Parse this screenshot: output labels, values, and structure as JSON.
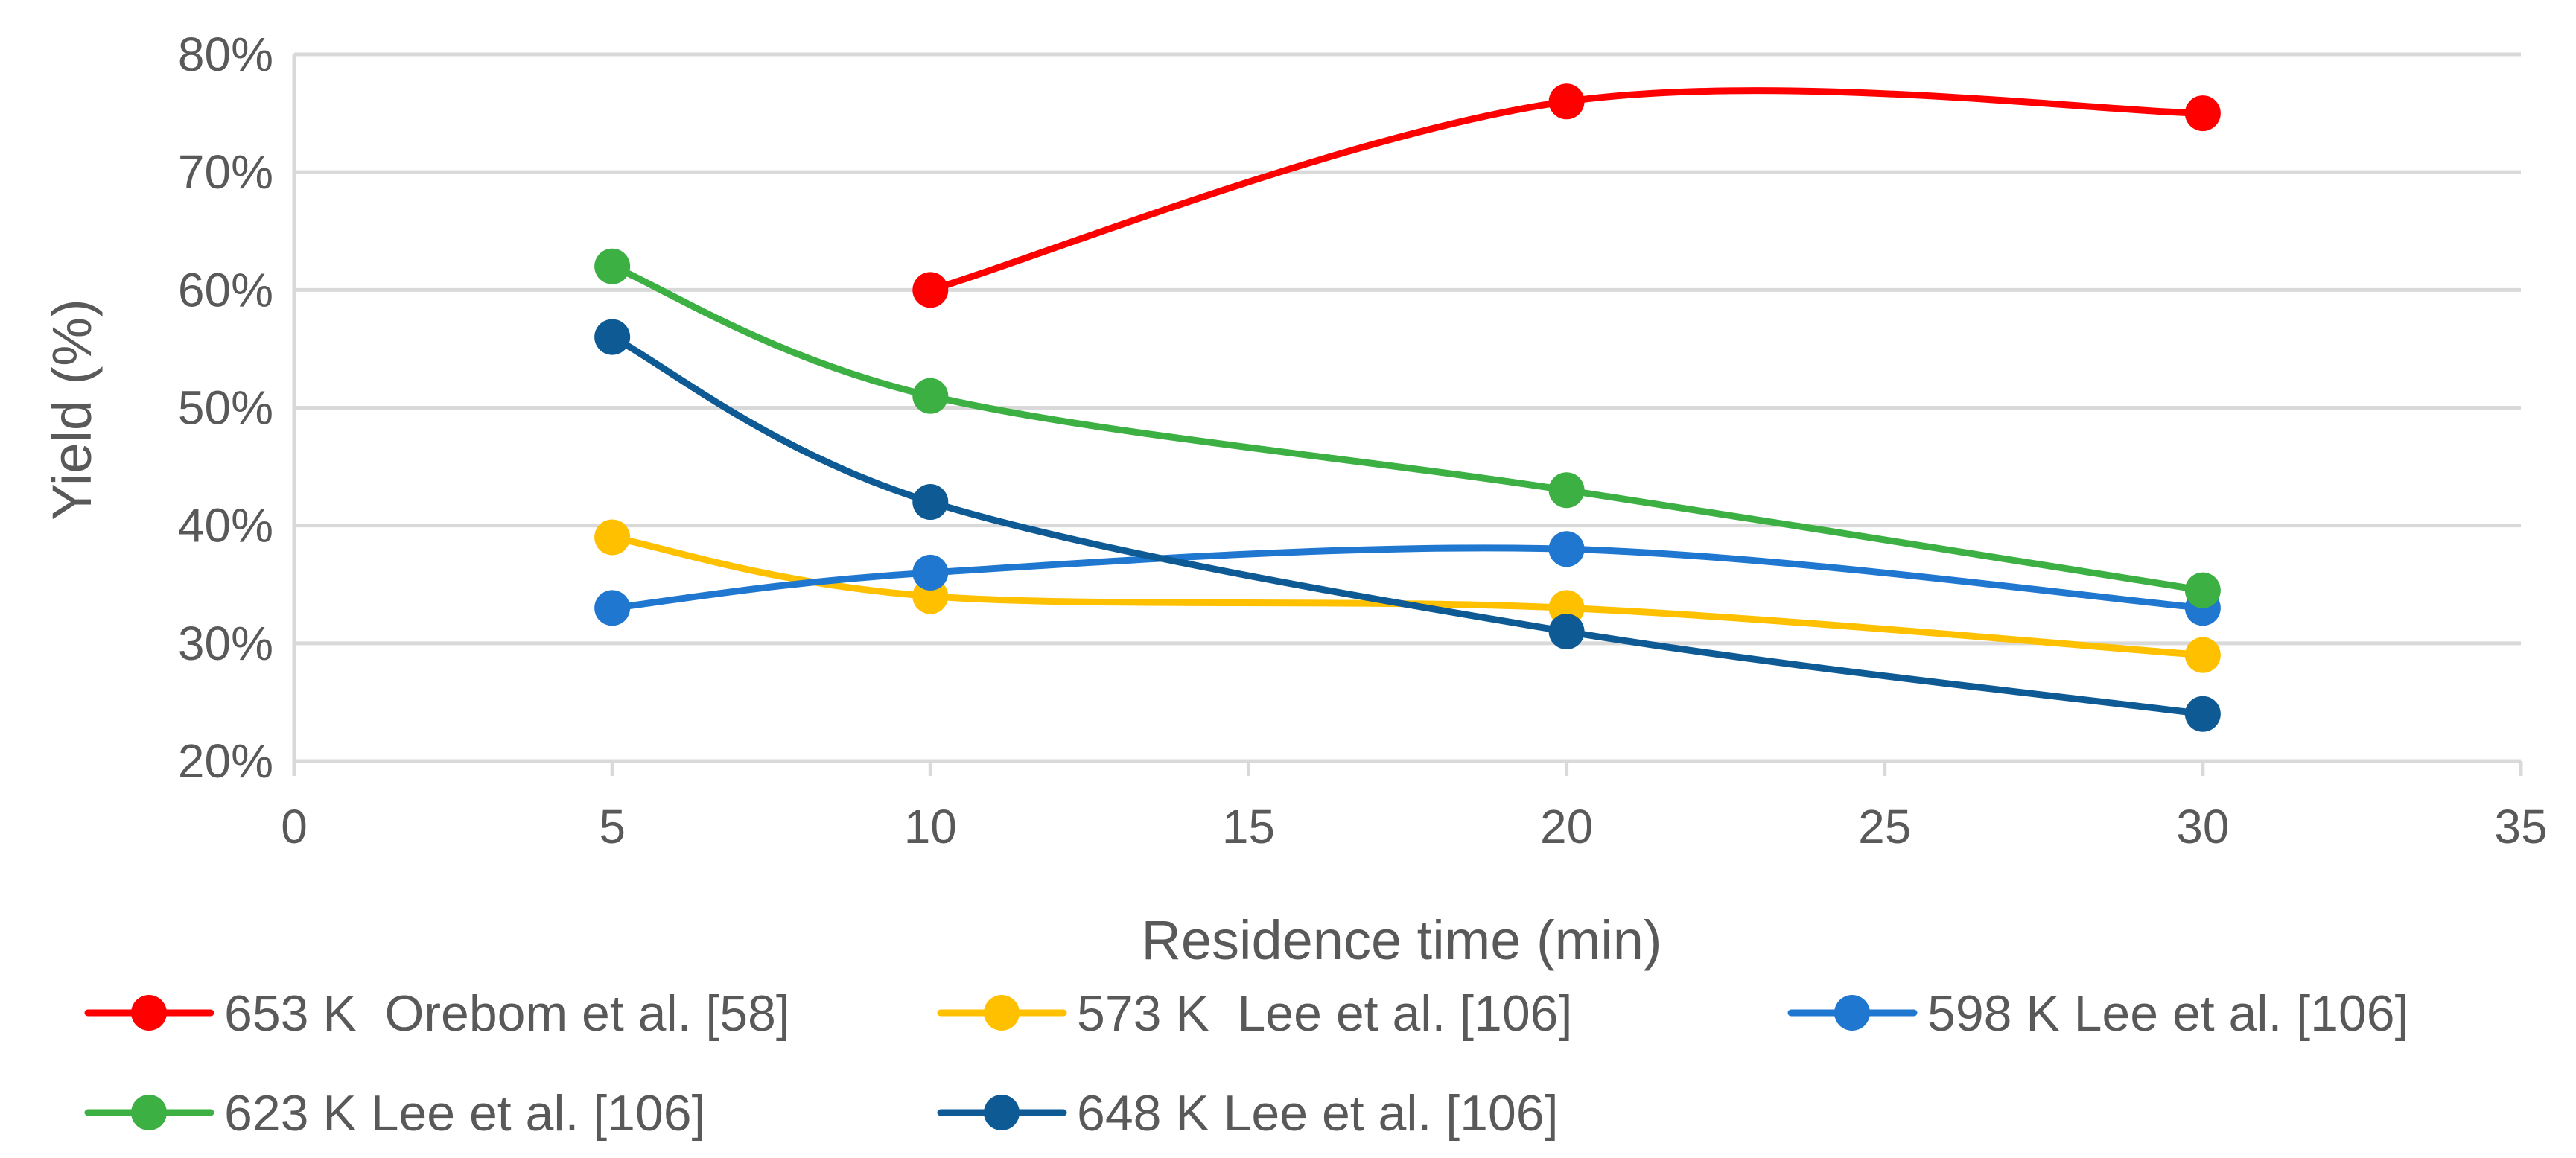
{
  "chart_data": {
    "type": "line",
    "title": "",
    "xlabel": "Residence time (min)",
    "ylabel": "Yield (%)",
    "xlim": [
      0,
      35
    ],
    "ylim": [
      0.2,
      0.8
    ],
    "x_ticks": [
      0,
      5,
      10,
      15,
      20,
      25,
      30,
      35
    ],
    "x_tick_labels": [
      "0",
      "5",
      "10",
      "15",
      "20",
      "25",
      "30",
      "35"
    ],
    "y_ticks": [
      0.2,
      0.3,
      0.4,
      0.5,
      0.6,
      0.7,
      0.8
    ],
    "y_tick_labels": [
      "20%",
      "30%",
      "40%",
      "50%",
      "60%",
      "70%",
      "80%"
    ],
    "grid": true,
    "legend_position": "bottom",
    "smooth": true,
    "series": [
      {
        "name": "653 K  Orebom et al. [58]",
        "color": "#ff0000",
        "x": [
          10,
          20,
          30
        ],
        "y": [
          0.6,
          0.76,
          0.75
        ]
      },
      {
        "name": "573 K  Lee et al. [106]",
        "color": "#ffc000",
        "x": [
          5,
          10,
          20,
          30
        ],
        "y": [
          0.39,
          0.34,
          0.33,
          0.29
        ]
      },
      {
        "name": "598 K Lee et al. [106]",
        "color": "#1f77d0",
        "x": [
          5,
          10,
          20,
          30
        ],
        "y": [
          0.33,
          0.36,
          0.38,
          0.33
        ]
      },
      {
        "name": "623 K Lee et al. [106]",
        "color": "#3cb043",
        "x": [
          5,
          10,
          20,
          30
        ],
        "y": [
          0.62,
          0.51,
          0.43,
          0.345
        ]
      },
      {
        "name": "648 K Lee et al. [106]",
        "color": "#0e5a94",
        "x": [
          5,
          10,
          20,
          30
        ],
        "y": [
          0.56,
          0.42,
          0.31,
          0.24
        ]
      }
    ]
  }
}
